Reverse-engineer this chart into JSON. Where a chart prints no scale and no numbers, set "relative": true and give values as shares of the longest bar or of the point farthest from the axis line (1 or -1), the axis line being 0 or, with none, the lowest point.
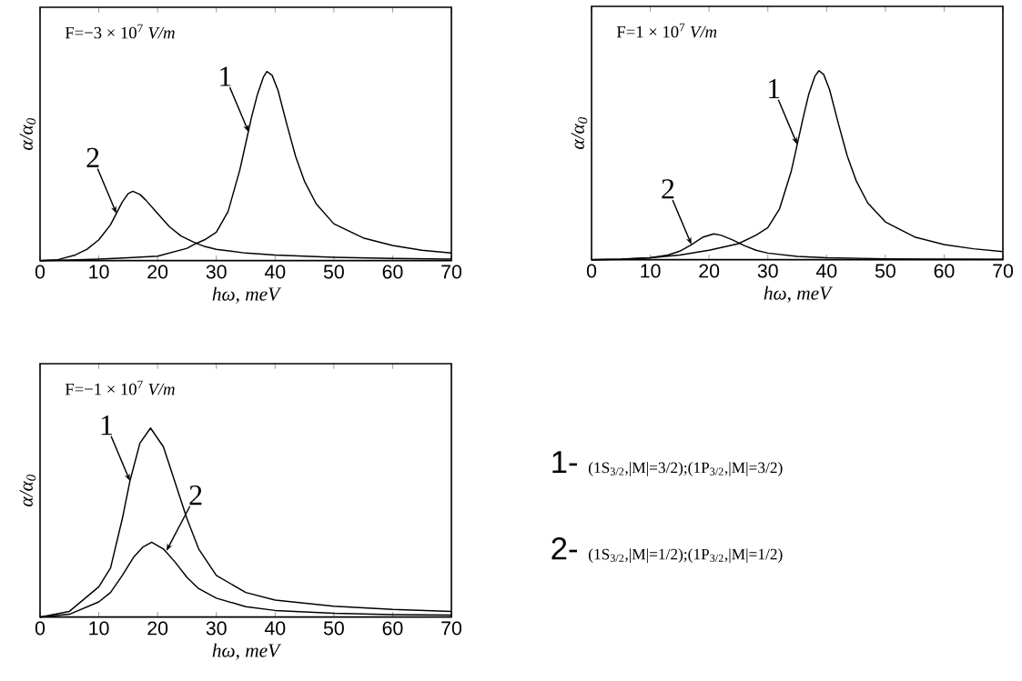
{
  "chart_data": [
    {
      "type": "line",
      "relative": true,
      "xlim": [
        0,
        70
      ],
      "xticks": [
        0,
        10,
        20,
        30,
        40,
        50,
        60,
        70
      ],
      "xlabel": "hω, meV",
      "ylabel": "α/α$_{0}$",
      "series": [
        {
          "color": "#000000",
          "x": [
            0,
            5,
            10,
            15,
            20,
            25,
            26.5,
            28,
            30,
            32,
            34,
            35,
            36,
            37,
            38,
            38.6,
            39.5,
            40.5,
            42,
            43.5,
            45,
            47,
            50,
            55,
            60,
            65,
            70
          ],
          "values": [
            0,
            0.003,
            0.008,
            0.015,
            0.024,
            0.065,
            0.09,
            0.11,
            0.15,
            0.26,
            0.48,
            0.62,
            0.76,
            0.88,
            0.97,
            1.0,
            0.98,
            0.9,
            0.72,
            0.55,
            0.42,
            0.3,
            0.195,
            0.12,
            0.08,
            0.055,
            0.04
          ]
        },
        {
          "color": "#000000",
          "x": [
            0,
            3,
            6,
            8,
            10,
            12,
            13,
            14,
            15,
            15.8,
            17,
            18,
            20,
            22,
            24,
            26,
            28,
            30,
            35,
            40,
            50,
            60,
            70
          ],
          "values": [
            0,
            0.005,
            0.03,
            0.06,
            0.11,
            0.19,
            0.25,
            0.31,
            0.355,
            0.367,
            0.35,
            0.32,
            0.25,
            0.18,
            0.13,
            0.1,
            0.075,
            0.06,
            0.04,
            0.03,
            0.018,
            0.012,
            0.008
          ]
        }
      ],
      "annotations": [
        "F=−3 × 10$^{7}$ *V/m*",
        {
          "text": "1",
          "x": 35.5,
          "y": 0.68
        },
        {
          "text": "2",
          "x": 13,
          "y": 0.25
        }
      ]
    },
    {
      "type": "line",
      "relative": true,
      "xlim": [
        0,
        70
      ],
      "xticks": [
        0,
        10,
        20,
        30,
        40,
        50,
        60,
        70
      ],
      "xlabel": "hω, meV",
      "ylabel": "α/α$_{0}$",
      "series": [
        {
          "color": "#000000",
          "x": [
            0,
            5,
            10,
            15,
            20,
            25,
            28,
            30,
            32,
            34,
            35,
            36,
            37,
            38,
            38.7,
            39.5,
            40.5,
            42,
            43.5,
            45,
            47,
            50,
            55,
            60,
            65,
            70
          ],
          "values": [
            0,
            0.003,
            0.01,
            0.025,
            0.05,
            0.085,
            0.13,
            0.17,
            0.27,
            0.47,
            0.61,
            0.75,
            0.88,
            0.97,
            1.0,
            0.98,
            0.9,
            0.72,
            0.55,
            0.42,
            0.3,
            0.2,
            0.12,
            0.08,
            0.058,
            0.043
          ]
        },
        {
          "color": "#000000",
          "x": [
            0,
            5,
            10,
            13,
            15,
            17,
            19,
            20.8,
            22,
            24,
            26,
            28,
            30,
            35,
            40,
            50,
            60,
            70
          ],
          "values": [
            0,
            0.002,
            0.01,
            0.025,
            0.045,
            0.08,
            0.12,
            0.137,
            0.13,
            0.105,
            0.075,
            0.05,
            0.035,
            0.018,
            0.01,
            0.005,
            0.003,
            0.002
          ]
        }
      ],
      "annotations": [
        "F=1 × 10$^{7}$ *V/m*",
        {
          "text": "1",
          "x": 35,
          "y": 0.61
        },
        {
          "text": "2",
          "x": 17,
          "y": 0.08
        }
      ]
    },
    {
      "type": "line",
      "relative": true,
      "xlim": [
        0,
        70
      ],
      "xticks": [
        0,
        10,
        20,
        30,
        40,
        50,
        60,
        70
      ],
      "xlabel": "hω, meV",
      "ylabel": "α/α$_{0}$",
      "series": [
        {
          "color": "#000000",
          "x": [
            0,
            5,
            10,
            12,
            14,
            15.3,
            17,
            18.8,
            21,
            23,
            25,
            27,
            30,
            35,
            40,
            50,
            60,
            70
          ],
          "values": [
            0,
            0.03,
            0.16,
            0.26,
            0.52,
            0.72,
            0.92,
            1.0,
            0.9,
            0.71,
            0.52,
            0.36,
            0.22,
            0.13,
            0.09,
            0.057,
            0.04,
            0.03
          ]
        },
        {
          "color": "#000000",
          "x": [
            0,
            5,
            10,
            12,
            14,
            16,
            17.5,
            19,
            21,
            23,
            25,
            27,
            30,
            35,
            40,
            50,
            60,
            70
          ],
          "values": [
            0,
            0.015,
            0.08,
            0.13,
            0.22,
            0.32,
            0.37,
            0.396,
            0.36,
            0.29,
            0.21,
            0.15,
            0.1,
            0.055,
            0.035,
            0.02,
            0.013,
            0.01
          ]
        }
      ],
      "annotations": [
        "F=−1 × 10$^{7}$ *V/m*",
        {
          "text": "1",
          "x": 15.3,
          "y": 0.72
        },
        {
          "text": "2",
          "x": 21.5,
          "y": 0.35
        }
      ]
    },
    {
      "type": "other",
      "annotations": [
        "1-",
        "(1S$_{3/2}$,|M|=3/2);(1P$_{3/2}$,|M|=3/2)",
        "2-",
        "(1S$_{3/2}$,|M|=1/2);(1P$_{3/2}$,|M|=1/2)"
      ]
    }
  ]
}
